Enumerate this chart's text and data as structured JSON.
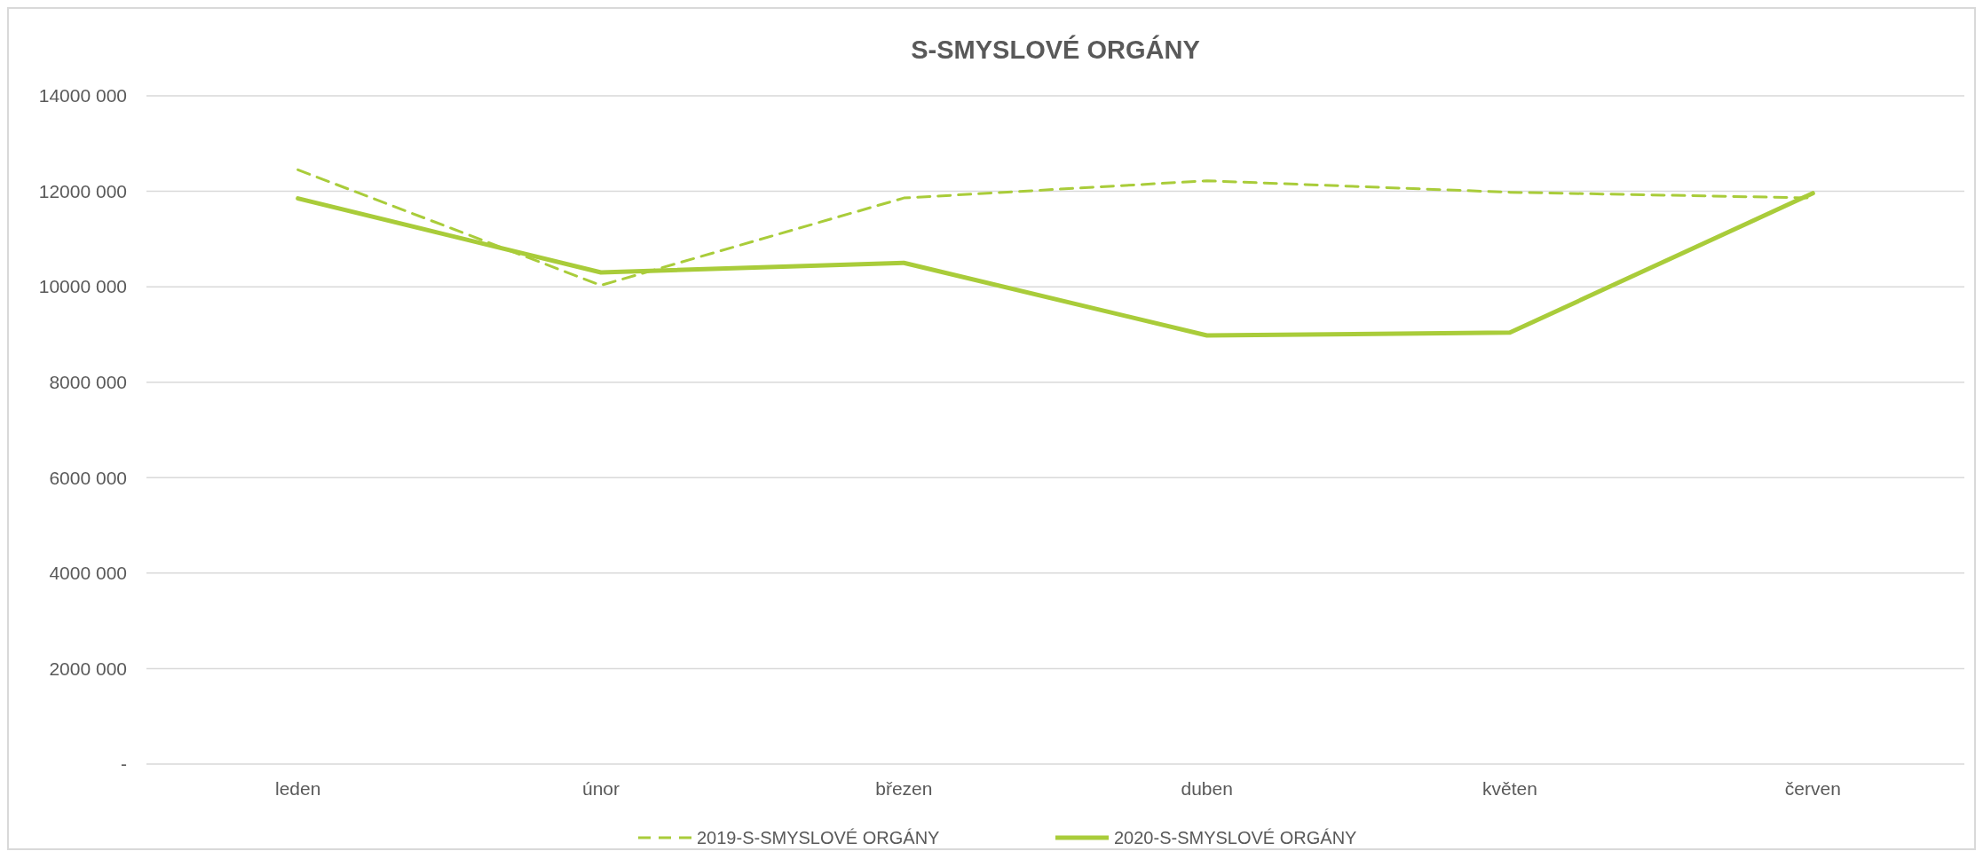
{
  "chart_data": {
    "type": "line",
    "title": "S-SMYSLOVÉ ORGÁNY",
    "categories": [
      "leden",
      "únor",
      "březen",
      "duben",
      "květen",
      "červen"
    ],
    "series": [
      {
        "name": "2019-S-SMYSLOVÉ ORGÁNY",
        "color": "#a9cc3a",
        "line_style": "dashed",
        "values": [
          12450000,
          10030000,
          11860000,
          12220000,
          11980000,
          11860000
        ]
      },
      {
        "name": "2020-S-SMYSLOVÉ ORGÁNY",
        "color": "#a9cc3a",
        "line_style": "solid",
        "values": [
          11850000,
          10300000,
          10500000,
          8980000,
          9040000,
          11960000
        ]
      }
    ],
    "ylim": [
      0,
      14000000
    ],
    "yticks": [
      {
        "value": 0,
        "label": "-"
      },
      {
        "value": 2000000,
        "label": "2000 000"
      },
      {
        "value": 4000000,
        "label": "4000 000"
      },
      {
        "value": 6000000,
        "label": "6000 000"
      },
      {
        "value": 8000000,
        "label": "8000 000"
      },
      {
        "value": 10000000,
        "label": "10000 000"
      },
      {
        "value": 12000000,
        "label": "12000 000"
      },
      {
        "value": 14000000,
        "label": "14000 000"
      }
    ],
    "grid": "y",
    "legend": "bottom",
    "marker": "none"
  }
}
